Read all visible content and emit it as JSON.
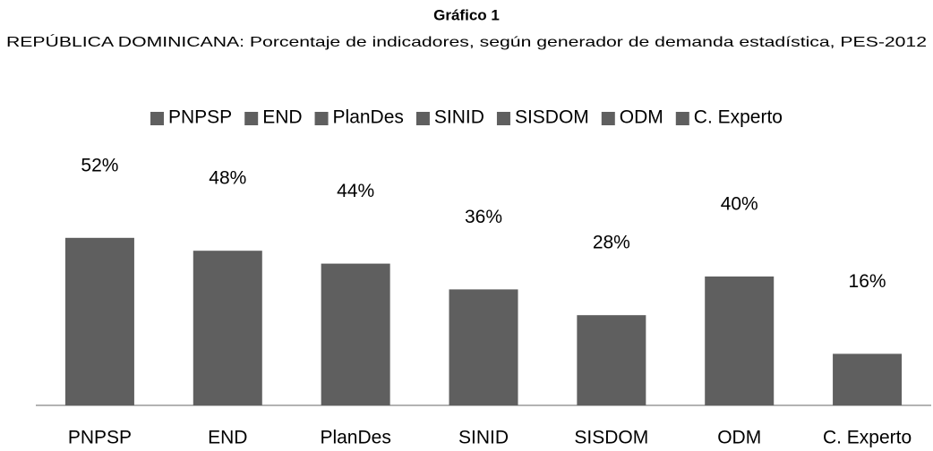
{
  "chart_data": {
    "type": "bar",
    "title": "Gráfico 1",
    "subtitle": "REPÚBLICA DOMINICANA: Porcentaje de indicadores, según generador de demanda estadística, PES-2012",
    "categories": [
      "PNPSP",
      "END",
      "PlanDes",
      "SINID",
      "SISDOM",
      "ODM",
      "C. Experto"
    ],
    "values": [
      52,
      48,
      44,
      36,
      28,
      40,
      16
    ],
    "value_labels": [
      "52%",
      "48%",
      "44%",
      "36%",
      "28%",
      "40%",
      "16%"
    ],
    "color": "#5f5f5f",
    "legend": "top"
  }
}
